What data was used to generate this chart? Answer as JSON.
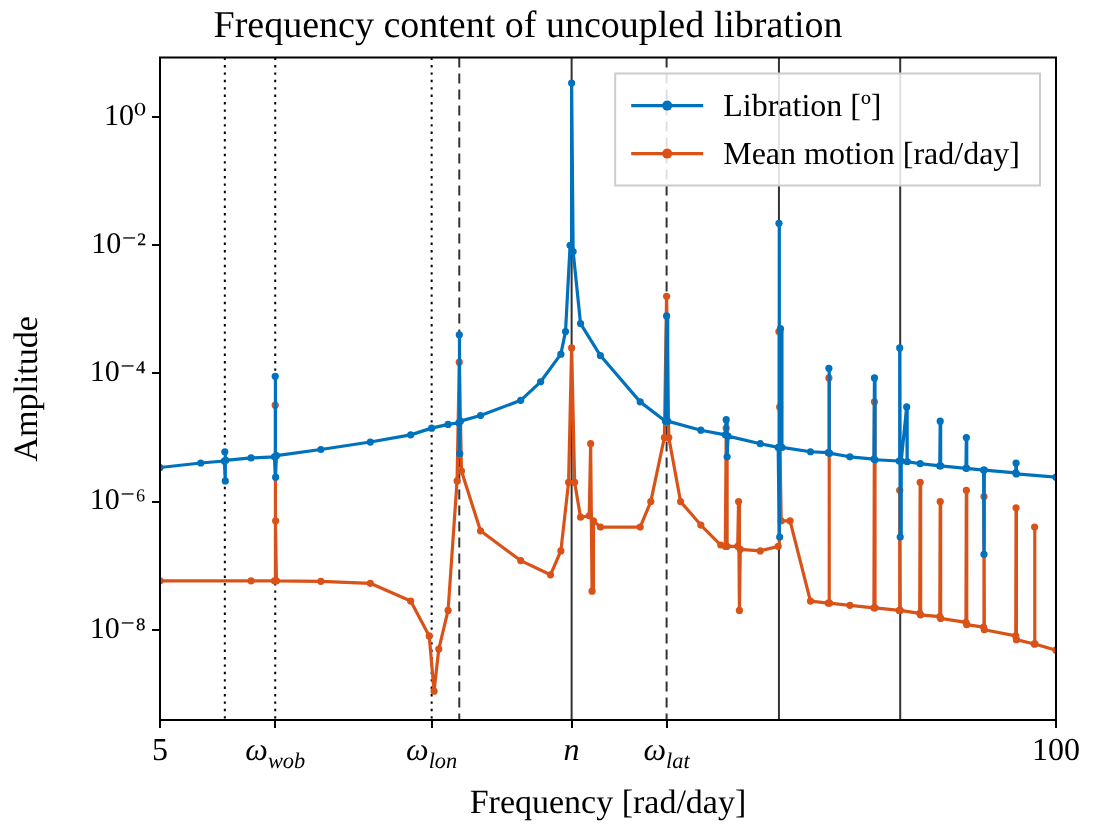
{
  "chart_data": {
    "type": "line",
    "title": "Frequency content of uncoupled libration",
    "xlabel": "Frequency [rad/day]",
    "ylabel": "Amplitude",
    "log": "xy",
    "grid": false,
    "legend": "top right",
    "marker": "circle",
    "line_style": "solid",
    "xlim": [
      5,
      100
    ],
    "xticks": [
      5,
      {
        "value": 7.35,
        "label": "ω$_{wob}$"
      },
      {
        "value": 12.4,
        "label": "ω$_{lon}$"
      },
      {
        "value": 19.8,
        "label": "n"
      },
      {
        "value": 27.2,
        "label": "ω$_{lat}$"
      },
      100
    ],
    "ylim": [
      3.9e-10,
      8.5
    ],
    "yticks": [
      {
        "value": 1,
        "label": "10⁰"
      },
      {
        "value": 0.01,
        "label": "10⁻²"
      },
      {
        "value": 0.0001,
        "label": "10⁻⁴"
      },
      {
        "value": 1e-06,
        "label": "10⁻⁶"
      },
      {
        "value": 1e-08,
        "label": "10⁻⁸"
      }
    ],
    "series": [
      {
        "name": "Libration [º]",
        "color": "#0072bd",
        "x": [
          5,
          5.73,
          6.2,
          6.21,
          6.22,
          6.23,
          6.78,
          7.33,
          7.35,
          7.36,
          7.38,
          8.56,
          10.1,
          11.56,
          12.4,
          13.1,
          13.58,
          13.6,
          13.62,
          13.65,
          14.6,
          16.7,
          17.85,
          19.1,
          19.4,
          19.7,
          19.8,
          19.9,
          20.4,
          21.8,
          24.9,
          27.1,
          27.2,
          27.3,
          30.5,
          33.1,
          33.2,
          33.3,
          33.4,
          37.2,
          39.5,
          39.6,
          39.7,
          39.8,
          40.0,
          44.0,
          46.7,
          46.8,
          46.9,
          50.2,
          54.4,
          54.5,
          54.6,
          59.2,
          59.3,
          59.4,
          59.6,
          60.7,
          60.8,
          63.5,
          67.8,
          67.9,
          68.0,
          74.0,
          74.1,
          74.2,
          78.5,
          78.6,
          78.7,
          87.4,
          87.5,
          87.6,
          100
        ],
        "values": [
          3.4e-06,
          4e-06,
          4.3e-06,
          6e-06,
          2.1e-06,
          4.4e-06,
          4.8e-06,
          5e-06,
          9e-05,
          2.4e-06,
          5.2e-06,
          6.5e-06,
          8.5e-06,
          1.1e-05,
          1.4e-05,
          1.6e-05,
          1.7e-05,
          0.0004,
          5.6e-06,
          1.8e-05,
          2.2e-05,
          3.8e-05,
          7.4e-05,
          0.0002,
          0.00045,
          0.01,
          3.4,
          0.008,
          0.0006,
          0.00019,
          3.6e-05,
          1.8e-05,
          0.00079,
          1.8e-05,
          1.3e-05,
          1.1e-05,
          1.9e-05,
          5e-06,
          1.05e-05,
          8e-06,
          7e-06,
          0.022,
          2.8e-07,
          0.0005,
          7e-06,
          6e-06,
          5.8e-06,
          0.00012,
          5.7e-06,
          5e-06,
          4.6e-06,
          8.5e-05,
          4.5e-06,
          4.3e-06,
          0.00025,
          2.8e-07,
          4.3e-06,
          3e-05,
          4.2e-06,
          3.9e-06,
          3.6e-06,
          1.8e-05,
          3.6e-06,
          3.3e-06,
          1e-05,
          3.3e-06,
          3.1e-06,
          1.5e-07,
          3.1e-06,
          2.8e-06,
          4e-06,
          2.7e-06,
          2.4e-06
        ]
      },
      {
        "name": "Mean motion [rad/day]",
        "color": "#d95319",
        "x": [
          5,
          6.78,
          7.33,
          7.35,
          7.36,
          7.38,
          8.56,
          10.1,
          11.56,
          12.3,
          12.5,
          12.7,
          13.1,
          13.5,
          13.6,
          13.7,
          14.6,
          16.7,
          18.45,
          19.1,
          19.6,
          19.8,
          20.0,
          20.4,
          21.0,
          21.1,
          21.2,
          21.3,
          21.8,
          24.9,
          25.8,
          27.0,
          27.2,
          27.4,
          28.5,
          30.5,
          32.6,
          33.1,
          33.2,
          33.3,
          34.5,
          34.6,
          34.7,
          34.8,
          37.2,
          39.5,
          39.6,
          39.7,
          39.9,
          41.1,
          44.0,
          46.7,
          46.8,
          46.9,
          50.2,
          54.4,
          54.5,
          54.6,
          59.2,
          59.3,
          59.4,
          63.4,
          63.5,
          63.6,
          67.8,
          67.9,
          68.0,
          74.0,
          74.1,
          74.2,
          78.5,
          78.6,
          78.7,
          87.4,
          87.5,
          87.6,
          93.0,
          93.1,
          93.2,
          100
        ],
        "values": [
          5.8e-08,
          5.8e-08,
          5.8e-08,
          3.2e-05,
          5e-07,
          5.8e-08,
          5.7e-08,
          5.3e-08,
          2.8e-08,
          8e-09,
          1.1e-09,
          5e-09,
          2e-08,
          2.1e-06,
          0.00015,
          3e-06,
          3.5e-07,
          1.2e-07,
          7.2e-08,
          1.7e-07,
          2e-06,
          0.00025,
          2e-06,
          5.7e-07,
          6e-07,
          8e-06,
          4e-08,
          5e-07,
          4e-07,
          4e-07,
          1e-06,
          1e-05,
          0.0016,
          1e-05,
          1e-06,
          4.3e-07,
          2.1e-07,
          2e-07,
          1.4e-05,
          2e-07,
          2e-07,
          1e-06,
          2e-08,
          1.8e-07,
          1.7e-07,
          2e-07,
          0.00045,
          3e-05,
          5e-07,
          5e-07,
          2.8e-08,
          2.6e-08,
          8.5e-05,
          2.6e-08,
          2.4e-08,
          2.2e-08,
          3.6e-05,
          2.2e-08,
          2e-08,
          1.5e-06,
          2e-08,
          1.8e-08,
          2e-06,
          1.7e-08,
          1.6e-08,
          1e-06,
          1.5e-08,
          1.3e-08,
          1.5e-06,
          1.2e-08,
          1.1e-08,
          1.2e-06,
          1e-08,
          8e-09,
          8e-07,
          7e-09,
          6e-09,
          4e-07,
          6e-09,
          4.8e-09
        ]
      }
    ],
    "ref_lines": [
      {
        "axis": "x",
        "value": 6.21,
        "color": "#000000",
        "line_style": "dotted"
      },
      {
        "axis": "x",
        "value": 7.35,
        "color": "#000000",
        "line_style": "dotted"
      },
      {
        "axis": "x",
        "value": 12.4,
        "color": "#000000",
        "line_style": "dotted"
      },
      {
        "axis": "x",
        "value": 13.6,
        "color": "#333333",
        "line_style": "dashed"
      },
      {
        "axis": "x",
        "value": 19.8,
        "color": "#333333",
        "line_style": "solid"
      },
      {
        "axis": "x",
        "value": 27.2,
        "color": "#333333",
        "line_style": "dashed"
      },
      {
        "axis": "x",
        "value": 39.6,
        "color": "#333333",
        "line_style": "solid"
      },
      {
        "axis": "x",
        "value": 59.4,
        "color": "#333333",
        "line_style": "solid"
      }
    ]
  }
}
